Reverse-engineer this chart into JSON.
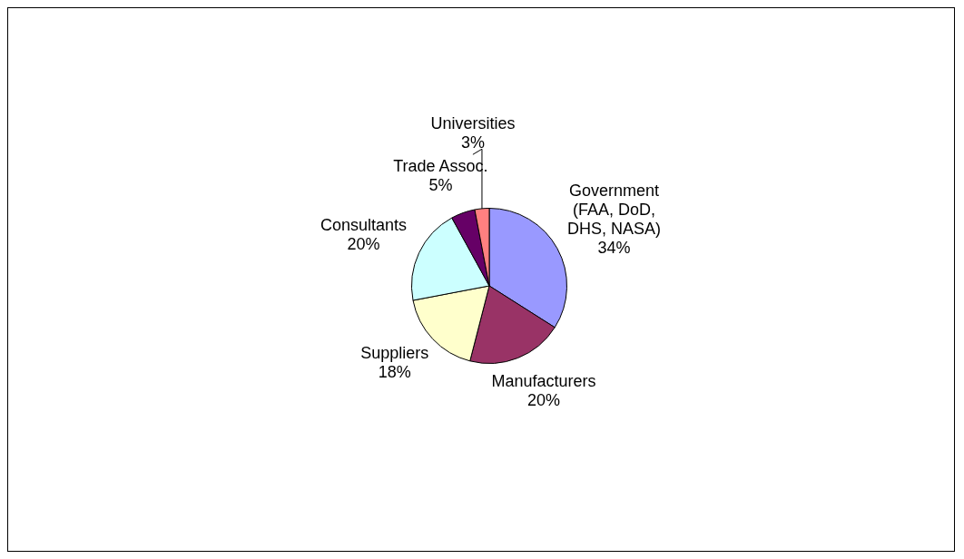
{
  "chart_data": {
    "type": "pie",
    "categories": [
      "Government (FAA, DoD, DHS, NASA)",
      "Manufacturers",
      "Suppliers",
      "Consultants",
      "Trade Assoc.",
      "Universities"
    ],
    "values": [
      34,
      20,
      18,
      20,
      5,
      3
    ],
    "value_labels": [
      "34%",
      "20%",
      "18%",
      "20%",
      "5%",
      "3%"
    ],
    "colors": [
      "#9999ff",
      "#993366",
      "#ffffcc",
      "#ccffff",
      "#660066",
      "#ff8080"
    ],
    "legend": false
  }
}
